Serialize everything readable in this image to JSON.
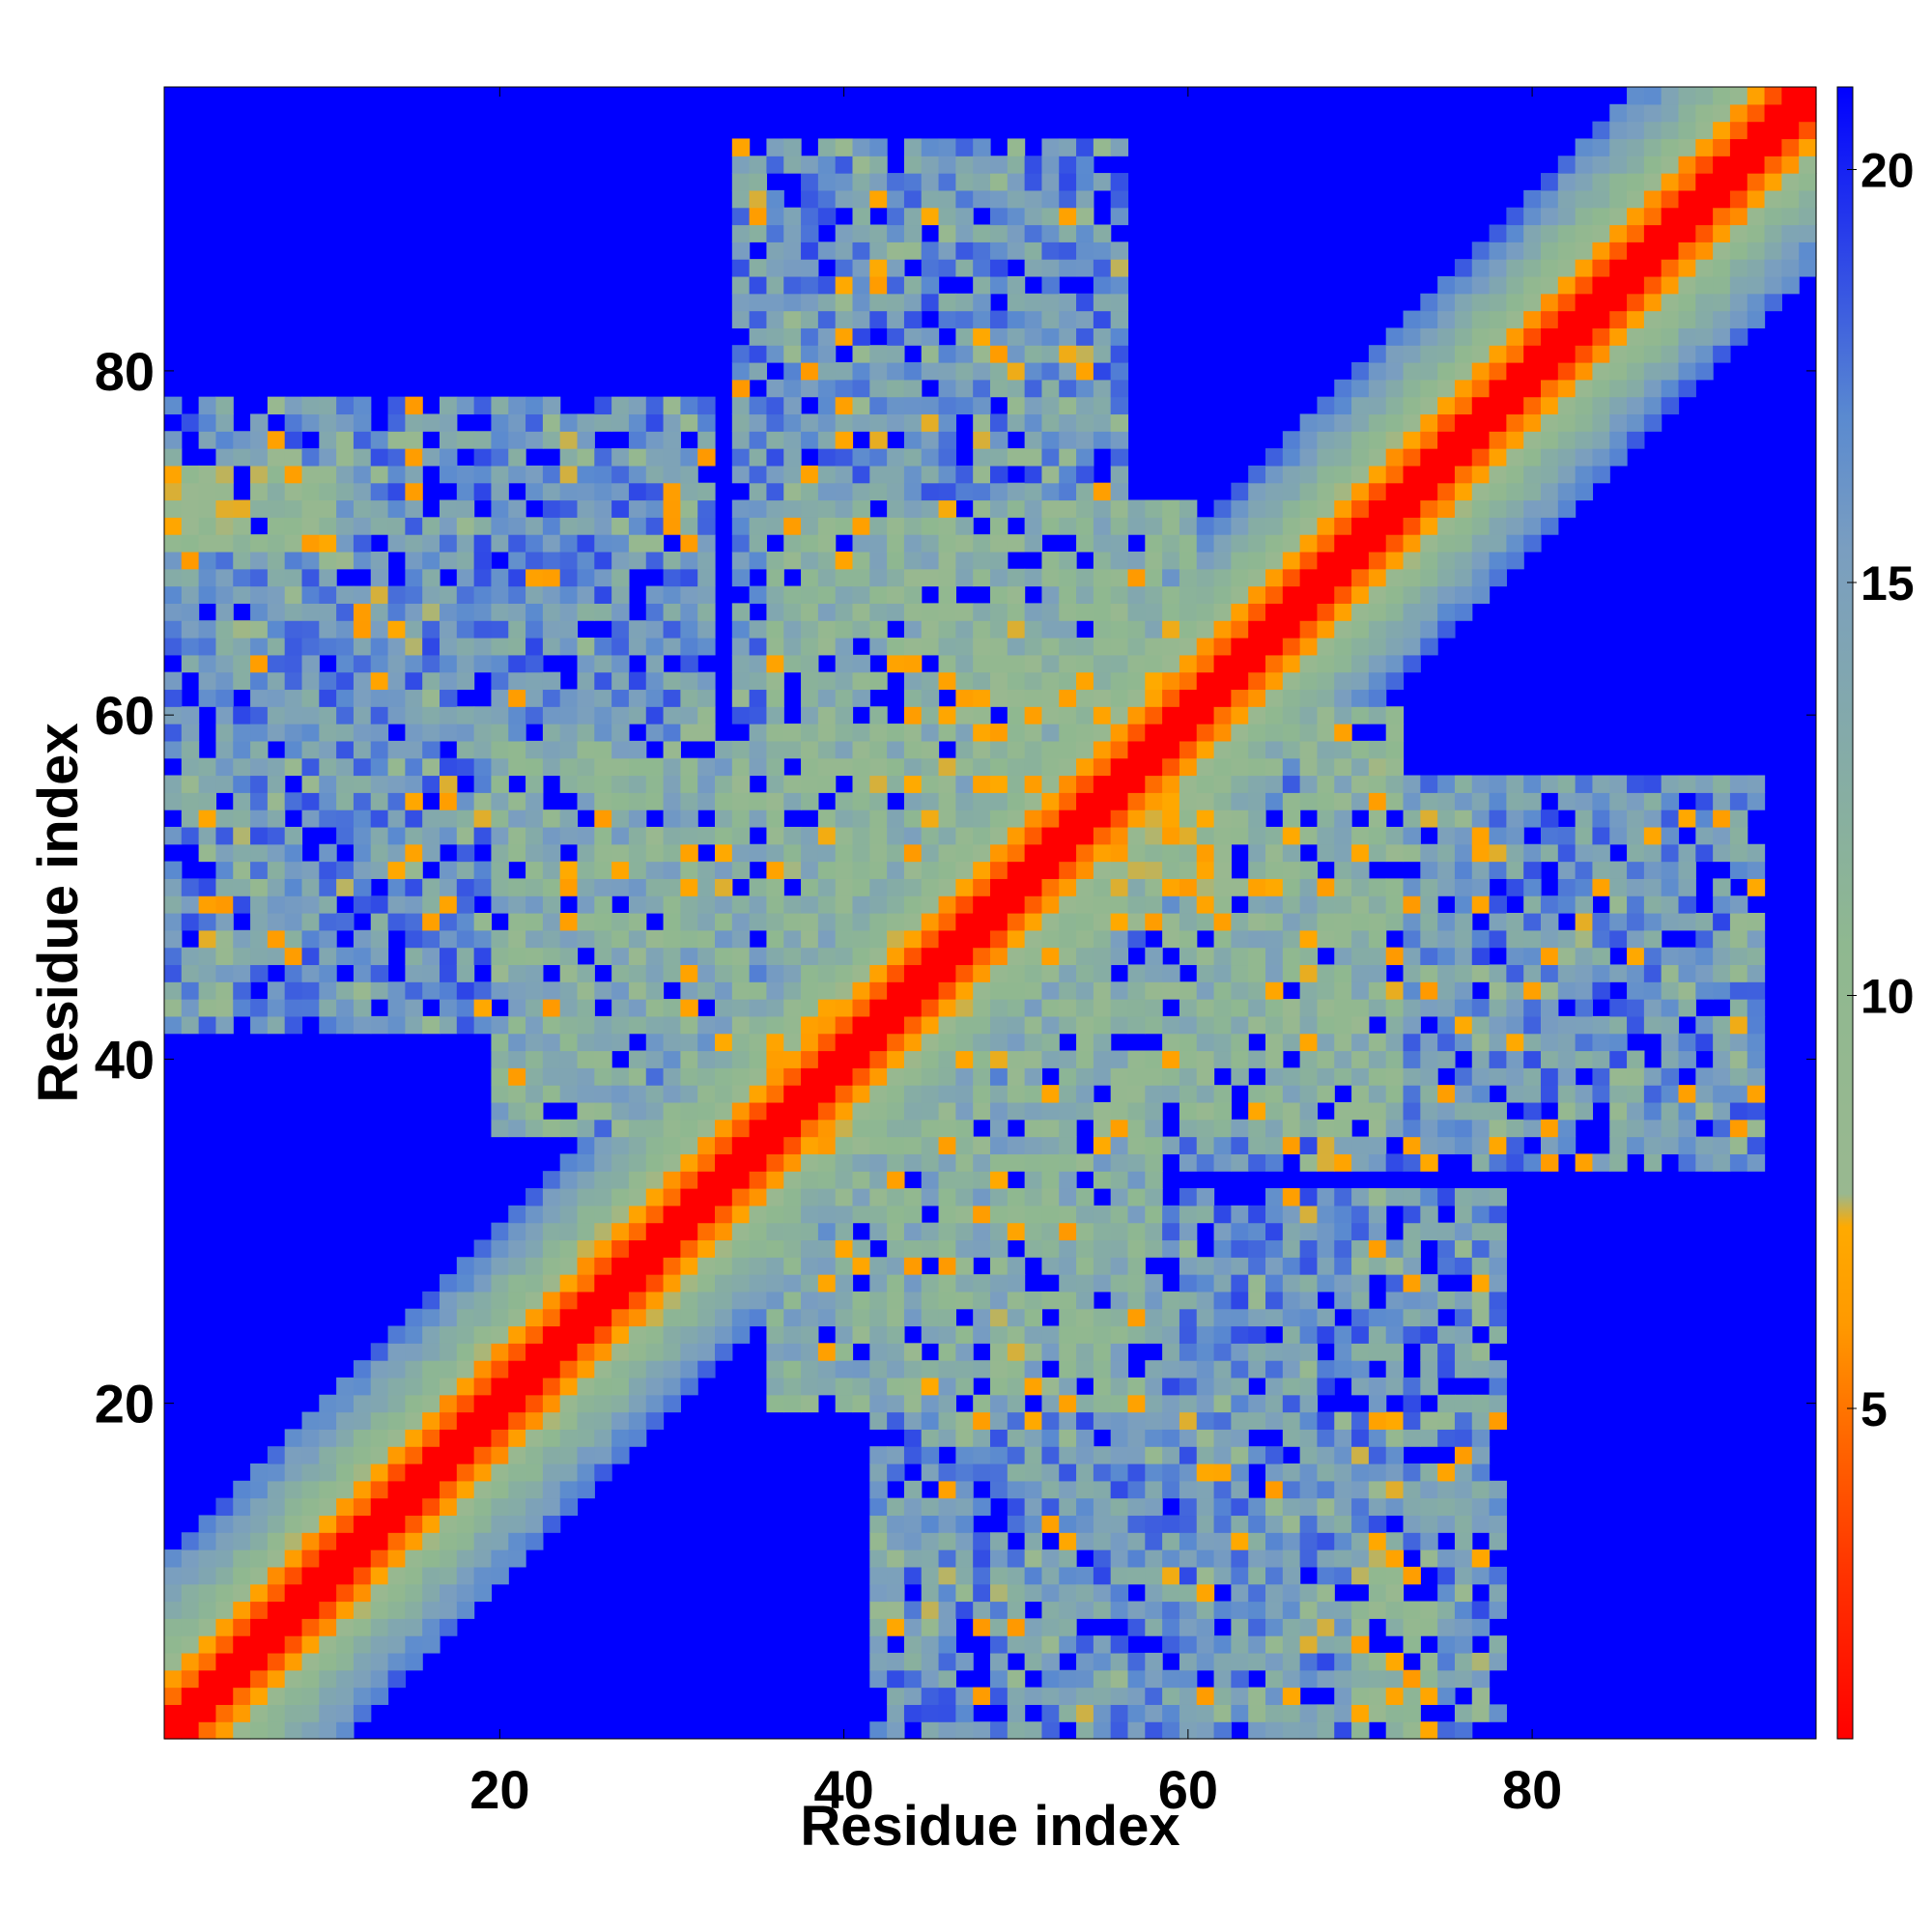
{
  "chart_data": {
    "type": "heatmap",
    "title": "",
    "xlabel": "Residue index",
    "ylabel": "Residue index",
    "n_residues": 96,
    "xlim": [
      0.5,
      96.5
    ],
    "ylim": [
      0.5,
      96.5
    ],
    "x_ticks": [
      20,
      40,
      60,
      80
    ],
    "y_ticks": [
      20,
      40,
      60,
      80
    ],
    "grid": false,
    "symmetric": true,
    "value_cap": 21,
    "colorbar": {
      "label": "",
      "range": [
        1,
        21
      ],
      "ticks": [
        5,
        10,
        15,
        20
      ],
      "colors": [
        "#ff0000",
        "#ff3300",
        "#ff6600",
        "#ff9900",
        "#ffaa00",
        "#99b890",
        "#8fb890",
        "#7a9ec0",
        "#5a8ad0",
        "#0000ff"
      ],
      "stops": [
        0,
        0.1,
        0.18,
        0.25,
        0.31,
        0.33,
        0.48,
        0.72,
        0.8,
        1.0
      ]
    },
    "band": {
      "half_width_full_contact": 1,
      "ramp_width": 10,
      "peak_distance": 4
    },
    "contact_regions": [
      {
        "x_range": [
          1,
          14
        ],
        "y_range": [
          42,
          78
        ],
        "mean_distance": 15
      },
      {
        "x_range": [
          14,
          32
        ],
        "y_range": [
          42,
          78
        ],
        "mean_distance": 15
      },
      {
        "x_range": [
          34,
          56
        ],
        "y_range": [
          58,
          93
        ],
        "mean_distance": 15
      },
      {
        "x_range": [
          20,
          40
        ],
        "y_range": [
          36,
          58
        ],
        "mean_distance": 12
      },
      {
        "x_range": [
          36,
          60
        ],
        "y_range": [
          50,
          72
        ],
        "mean_distance": 11
      },
      {
        "x_range": [
          48,
          62
        ],
        "y_range": [
          56,
          62
        ],
        "mean_distance": 9
      },
      {
        "x_range": [
          1,
          10
        ],
        "y_range": [
          70,
          74
        ],
        "mean_distance": 9
      }
    ],
    "point_labels": []
  }
}
